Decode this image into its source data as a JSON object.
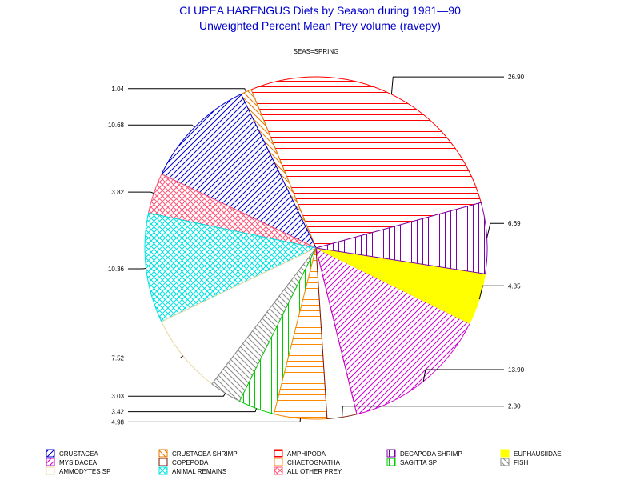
{
  "chart_data": {
    "type": "pie",
    "title": "CLUPEA HARENGUS Diets by Season during 1981—90",
    "subtitle": "Unweighted Percent Mean Prey volume (ravepy)",
    "panel_label": "SEAS=SPRING",
    "slices": [
      {
        "name": "AMPHIPODA",
        "value": 26.9,
        "label": "26.90",
        "color": "#ff0000",
        "pattern": "hlines"
      },
      {
        "name": "CRUSTACEA SHRIMP",
        "value": 1.04,
        "label": "1.04",
        "color": "#e07a00",
        "pattern": "diag-bk"
      },
      {
        "name": "CRUSTACEA",
        "value": 10.68,
        "label": "10.68",
        "color": "#0000cc",
        "pattern": "diag-fw"
      },
      {
        "name": "ALL OTHER PREY",
        "value": 3.82,
        "label": "3.82",
        "color": "#ff5577",
        "pattern": "crosshatch-diag"
      },
      {
        "name": "ANIMAL REMAINS",
        "value": 10.36,
        "label": "10.36",
        "color": "#00e0e0",
        "pattern": "crosshatch-diag"
      },
      {
        "name": "AMMODYTES SP",
        "value": 7.52,
        "label": "7.52",
        "color": "#e8d8a0",
        "pattern": "grid"
      },
      {
        "name": "FISH",
        "value": 3.03,
        "label": "3.03",
        "color": "#888888",
        "pattern": "diag-bk"
      },
      {
        "name": "SAGITTA SP",
        "value": 3.42,
        "label": "3.42",
        "color": "#00cc00",
        "pattern": "vlines"
      },
      {
        "name": "CHAETOGNATHA",
        "value": 4.98,
        "label": "4.98",
        "color": "#ff8800",
        "pattern": "hlines"
      },
      {
        "name": "COPEPODA",
        "value": 2.8,
        "label": "2.80",
        "color": "#7a1500",
        "pattern": "grid"
      },
      {
        "name": "MYSIDACEA",
        "value": 13.9,
        "label": "13.90",
        "color": "#cc00cc",
        "pattern": "diag-fw"
      },
      {
        "name": "EUPHAUSIIDAE",
        "value": 4.85,
        "label": "4.85",
        "color": "#ffff00",
        "pattern": "solid"
      },
      {
        "name": "DECAPODA SHRIMP",
        "value": 6.69,
        "label": "6.69",
        "color": "#7a00aa",
        "pattern": "vlines"
      }
    ],
    "legend": [
      {
        "name": "CRUSTACEA",
        "color": "#0000cc",
        "pattern": "diag-fw"
      },
      {
        "name": "CRUSTACEA SHRIMP",
        "color": "#e07a00",
        "pattern": "diag-bk"
      },
      {
        "name": "AMPHIPODA",
        "color": "#ff0000",
        "pattern": "hlines"
      },
      {
        "name": "DECAPODA SHRIMP",
        "color": "#7a00aa",
        "pattern": "vlines"
      },
      {
        "name": "EUPHAUSIIDAE",
        "color": "#ffff00",
        "pattern": "solid"
      },
      {
        "name": "MYSIDACEA",
        "color": "#cc00cc",
        "pattern": "diag-fw"
      },
      {
        "name": "COPEPODA",
        "color": "#7a1500",
        "pattern": "grid"
      },
      {
        "name": "CHAETOGNATHA",
        "color": "#ff8800",
        "pattern": "hlines"
      },
      {
        "name": "SAGITTA SP",
        "color": "#00cc00",
        "pattern": "vlines"
      },
      {
        "name": "FISH",
        "color": "#888888",
        "pattern": "diag-bk"
      },
      {
        "name": "AMMODYTES SP",
        "color": "#e8d8a0",
        "pattern": "grid"
      },
      {
        "name": "ANIMAL REMAINS",
        "color": "#00e0e0",
        "pattern": "crosshatch-diag"
      },
      {
        "name": "ALL OTHER PREY",
        "color": "#ff5577",
        "pattern": "crosshatch-diag"
      }
    ],
    "legend_placement": "bottom"
  }
}
